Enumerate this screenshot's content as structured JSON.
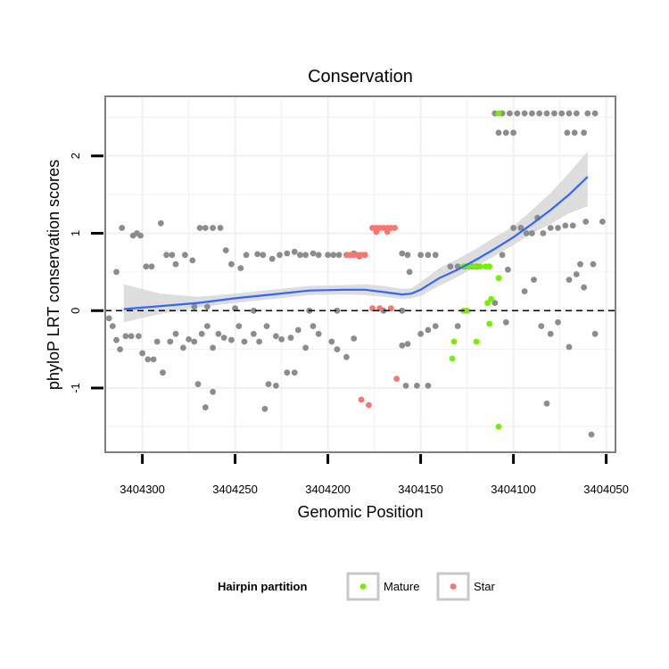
{
  "chart_data": {
    "type": "scatter",
    "title": "Conservation",
    "xlabel": "Genomic Position",
    "ylabel": "phyloP LRT conservation scores",
    "x_reversed": true,
    "xlim": [
      3404320,
      3404045
    ],
    "ylim": [
      -1.83,
      2.77
    ],
    "x_ticks": [
      3404300,
      3404250,
      3404200,
      3404150,
      3404100,
      3404050
    ],
    "y_ticks": [
      -1,
      0,
      1,
      2
    ],
    "grid": true,
    "reference_line_y": 0,
    "legend": {
      "title": "Hairpin partition",
      "position": "bottom",
      "entries": [
        {
          "name": "Mature",
          "color": "#76ee00"
        },
        {
          "name": "Star",
          "color": "#f8766d"
        }
      ]
    },
    "colors": {
      "background": "#ffffff",
      "panel_border": "#7f7f7f",
      "grid": "#f0f0f0",
      "other_points": "#8c8c8c",
      "smooth_line": "#3366ff",
      "ribbon": "#d9d9d9"
    },
    "series": [
      {
        "name": "",
        "color": "#8c8c8c",
        "points": [
          [
            3404311,
            1.07
          ],
          [
            3404305,
            0.97
          ],
          [
            3404303,
            1.0
          ],
          [
            3404301,
            0.97
          ],
          [
            3404298,
            0.57
          ],
          [
            3404295,
            0.57
          ],
          [
            3404290,
            1.13
          ],
          [
            3404287,
            0.72
          ],
          [
            3404284,
            0.72
          ],
          [
            3404282,
            0.6
          ],
          [
            3404277,
            0.72
          ],
          [
            3404273,
            0.65
          ],
          [
            3404269,
            1.07
          ],
          [
            3404266,
            1.07
          ],
          [
            3404262,
            1.07
          ],
          [
            3404258,
            1.07
          ],
          [
            3404255,
            0.78
          ],
          [
            3404252,
            0.6
          ],
          [
            3404247,
            0.55
          ],
          [
            3404244,
            0.72
          ],
          [
            3404238,
            0.73
          ],
          [
            3404235,
            0.72
          ],
          [
            3404230,
            0.67
          ],
          [
            3404226,
            0.72
          ],
          [
            3404222,
            0.74
          ],
          [
            3404218,
            0.76
          ],
          [
            3404215,
            0.72
          ],
          [
            3404212,
            0.72
          ],
          [
            3404208,
            0.74
          ],
          [
            3404205,
            0.72
          ],
          [
            3404200,
            0.72
          ],
          [
            3404197,
            0.72
          ],
          [
            3404194,
            0.72
          ],
          [
            3404190,
            0.72
          ],
          [
            3404186,
            0.74
          ],
          [
            3404183,
            0.7
          ],
          [
            3404180,
            0.72
          ],
          [
            3404160,
            0.74
          ],
          [
            3404157,
            0.72
          ],
          [
            3404150,
            0.72
          ],
          [
            3404146,
            0.72
          ],
          [
            3404142,
            0.72
          ],
          [
            3404156,
            0.5
          ],
          [
            3404134,
            0.57
          ],
          [
            3404130,
            0.57
          ],
          [
            3404126,
            0.57
          ],
          [
            3404122,
            0.57
          ],
          [
            3404120,
            0.57
          ],
          [
            3404314,
            0.5
          ],
          [
            3404272,
            0.05
          ],
          [
            3404265,
            0.05
          ],
          [
            3404250,
            0.03
          ],
          [
            3404240,
            0.0
          ],
          [
            3404210,
            0.0
          ],
          [
            3404195,
            0.0
          ],
          [
            3404170,
            0.0
          ],
          [
            3404160,
            0.0
          ],
          [
            3404318,
            -0.1
          ],
          [
            3404316,
            -0.2
          ],
          [
            3404314,
            -0.38
          ],
          [
            3404312,
            -0.5
          ],
          [
            3404309,
            -0.33
          ],
          [
            3404306,
            -0.33
          ],
          [
            3404302,
            -0.33
          ],
          [
            3404300,
            -0.55
          ],
          [
            3404297,
            -0.63
          ],
          [
            3404294,
            -0.63
          ],
          [
            3404292,
            -0.4
          ],
          [
            3404289,
            -0.8
          ],
          [
            3404285,
            -0.4
          ],
          [
            3404282,
            -0.3
          ],
          [
            3404278,
            -0.48
          ],
          [
            3404275,
            -0.37
          ],
          [
            3404272,
            -0.4
          ],
          [
            3404268,
            -0.3
          ],
          [
            3404265,
            -0.2
          ],
          [
            3404262,
            -0.48
          ],
          [
            3404259,
            -0.3
          ],
          [
            3404256,
            -0.35
          ],
          [
            3404252,
            -0.38
          ],
          [
            3404248,
            -0.2
          ],
          [
            3404245,
            -0.4
          ],
          [
            3404240,
            -0.3
          ],
          [
            3404237,
            -0.4
          ],
          [
            3404233,
            -0.2
          ],
          [
            3404228,
            -0.33
          ],
          [
            3404225,
            -0.37
          ],
          [
            3404220,
            -0.35
          ],
          [
            3404216,
            -0.25
          ],
          [
            3404212,
            -0.48
          ],
          [
            3404208,
            -0.2
          ],
          [
            3404205,
            -0.3
          ],
          [
            3404198,
            -0.4
          ],
          [
            3404195,
            -0.5
          ],
          [
            3404190,
            -0.6
          ],
          [
            3404186,
            -0.36
          ],
          [
            3404160,
            -0.45
          ],
          [
            3404157,
            -0.43
          ],
          [
            3404150,
            -0.3
          ],
          [
            3404146,
            -0.25
          ],
          [
            3404142,
            -0.2
          ],
          [
            3404130,
            -0.2
          ],
          [
            3404270,
            -0.95
          ],
          [
            3404266,
            -1.25
          ],
          [
            3404262,
            -1.05
          ],
          [
            3404234,
            -1.27
          ],
          [
            3404232,
            -0.95
          ],
          [
            3404228,
            -0.97
          ],
          [
            3404222,
            -0.8
          ],
          [
            3404218,
            -0.8
          ],
          [
            3404158,
            -0.97
          ],
          [
            3404152,
            -0.97
          ],
          [
            3404146,
            -0.97
          ],
          [
            3404106,
            0.72
          ],
          [
            3404103,
            0.53
          ],
          [
            3404100,
            1.07
          ],
          [
            3404096,
            1.07
          ],
          [
            3404093,
            1.0
          ],
          [
            3404090,
            1.0
          ],
          [
            3404087,
            1.2
          ],
          [
            3404084,
            1.0
          ],
          [
            3404080,
            1.07
          ],
          [
            3404076,
            1.07
          ],
          [
            3404072,
            1.1
          ],
          [
            3404068,
            1.1
          ],
          [
            3404064,
            0.6
          ],
          [
            3404061,
            1.15
          ],
          [
            3404057,
            0.6
          ],
          [
            3404052,
            1.15
          ],
          [
            3404070,
            0.4
          ],
          [
            3404066,
            0.47
          ],
          [
            3404062,
            0.3
          ],
          [
            3404089,
            0.4
          ],
          [
            3404094,
            0.25
          ],
          [
            3404110,
            0.1
          ],
          [
            3404104,
            -0.15
          ],
          [
            3404085,
            -0.2
          ],
          [
            3404080,
            -0.3
          ],
          [
            3404076,
            -0.15
          ],
          [
            3404056,
            -0.3
          ],
          [
            3404082,
            -1.2
          ],
          [
            3404070,
            -0.47
          ],
          [
            3404058,
            -1.6
          ],
          [
            3404110,
            2.55
          ],
          [
            3404106,
            2.55
          ],
          [
            3404102,
            2.55
          ],
          [
            3404098,
            2.55
          ],
          [
            3404094,
            2.55
          ],
          [
            3404090,
            2.55
          ],
          [
            3404086,
            2.55
          ],
          [
            3404082,
            2.55
          ],
          [
            3404078,
            2.55
          ],
          [
            3404074,
            2.55
          ],
          [
            3404070,
            2.55
          ],
          [
            3404066,
            2.55
          ],
          [
            3404060,
            2.55
          ],
          [
            3404056,
            2.55
          ],
          [
            3404108,
            2.3
          ],
          [
            3404104,
            2.3
          ],
          [
            3404100,
            2.3
          ],
          [
            3404071,
            2.3
          ],
          [
            3404067,
            2.3
          ],
          [
            3404062,
            2.3
          ]
        ]
      },
      {
        "name": "Mature",
        "color": "#76ee00",
        "points": [
          [
            3404127,
            0.57
          ],
          [
            3404124,
            0.57
          ],
          [
            3404121,
            0.57
          ],
          [
            3404118,
            0.57
          ],
          [
            3404115,
            0.57
          ],
          [
            3404113,
            0.57
          ],
          [
            3404132,
            -0.4
          ],
          [
            3404127,
            0.0
          ],
          [
            3404125,
            0.0
          ],
          [
            3404120,
            -0.4
          ],
          [
            3404114,
            0.1
          ],
          [
            3404112,
            0.15
          ],
          [
            3404113,
            -0.17
          ],
          [
            3404108,
            0.42
          ],
          [
            3404133,
            -0.62
          ],
          [
            3404108,
            -1.5
          ],
          [
            3404108,
            2.55
          ]
        ]
      },
      {
        "name": "Star",
        "color": "#f8766d",
        "points": [
          [
            3404190,
            0.72
          ],
          [
            3404188,
            0.72
          ],
          [
            3404186,
            0.72
          ],
          [
            3404184,
            0.72
          ],
          [
            3404182,
            0.72
          ],
          [
            3404180,
            0.72
          ],
          [
            3404176,
            1.07
          ],
          [
            3404174,
            1.07
          ],
          [
            3404172,
            1.07
          ],
          [
            3404170,
            1.07
          ],
          [
            3404168,
            1.07
          ],
          [
            3404166,
            1.07
          ],
          [
            3404164,
            1.07
          ],
          [
            3404174,
            1.02
          ],
          [
            3404168,
            1.02
          ],
          [
            3404176,
            0.03
          ],
          [
            3404172,
            0.03
          ],
          [
            3404166,
            0.03
          ],
          [
            3404163,
            -0.88
          ],
          [
            3404182,
            -1.15
          ],
          [
            3404178,
            -1.22
          ]
        ]
      }
    ],
    "smooth": {
      "x": [
        3404310,
        3404290,
        3404270,
        3404250,
        3404230,
        3404210,
        3404190,
        3404180,
        3404170,
        3404160,
        3404155,
        3404150,
        3404140,
        3404130,
        3404120,
        3404110,
        3404100,
        3404090,
        3404080,
        3404070,
        3404060
      ],
      "y": [
        0.02,
        0.06,
        0.1,
        0.16,
        0.21,
        0.26,
        0.27,
        0.27,
        0.24,
        0.21,
        0.22,
        0.27,
        0.42,
        0.53,
        0.66,
        0.8,
        0.95,
        1.12,
        1.3,
        1.5,
        1.73
      ],
      "lower": [
        -0.15,
        -0.04,
        0.04,
        0.1,
        0.15,
        0.2,
        0.21,
        0.2,
        0.18,
        0.15,
        0.16,
        0.19,
        0.32,
        0.44,
        0.57,
        0.71,
        0.85,
        1.0,
        1.12,
        1.26,
        1.35
      ],
      "upper": [
        0.34,
        0.22,
        0.18,
        0.22,
        0.27,
        0.32,
        0.33,
        0.34,
        0.32,
        0.28,
        0.29,
        0.37,
        0.55,
        0.67,
        0.8,
        0.95,
        1.09,
        1.3,
        1.52,
        1.78,
        2.06
      ]
    }
  }
}
